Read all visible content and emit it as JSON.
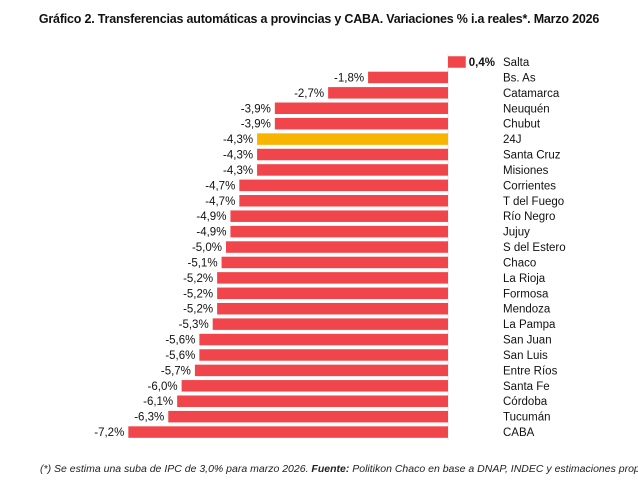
{
  "chart_data": {
    "type": "bar",
    "orientation": "horizontal",
    "title": "Gráfico 2. Transferencias automáticas a provincias y CABA. Variaciones % i.a reales*. Marzo 2026",
    "categories": [
      "Salta",
      "Bs. As",
      "Catamarca",
      "Neuquén",
      "Chubut",
      "24J",
      "Santa Cruz",
      "Misiones",
      "Corrientes",
      "T del Fuego",
      "Río Negro",
      "Jujuy",
      "S del Estero",
      "Chaco",
      "La Rioja",
      "Formosa",
      "Mendoza",
      "La Pampa",
      "San Juan",
      "San Luis",
      "Entre Ríos",
      "Santa Fe",
      "Córdoba",
      "Tucumán",
      "CABA"
    ],
    "values": [
      0.4,
      -1.8,
      -2.7,
      -3.9,
      -3.9,
      -4.3,
      -4.3,
      -4.3,
      -4.7,
      -4.7,
      -4.9,
      -4.9,
      -5.0,
      -5.1,
      -5.2,
      -5.2,
      -5.2,
      -5.3,
      -5.6,
      -5.6,
      -5.7,
      -6.0,
      -6.1,
      -6.3,
      -7.2
    ],
    "data_labels": [
      "0,4%",
      "-1,8%",
      "-2,7%",
      "-3,9%",
      "-3,9%",
      "-4,3%",
      "-4,3%",
      "-4,3%",
      "-4,7%",
      "-4,7%",
      "-4,9%",
      "-4,9%",
      "-5,0%",
      "-5,1%",
      "-5,2%",
      "-5,2%",
      "-5,2%",
      "-5,3%",
      "-5,6%",
      "-5,6%",
      "-5,7%",
      "-6,0%",
      "-6,1%",
      "-6,3%",
      "-7,2%"
    ],
    "highlight": "24J",
    "xlim": [
      -7.2,
      0.4
    ],
    "colors": {
      "default": "#f0464b",
      "highlight": "#f7b500"
    },
    "grid": false,
    "legend": "none"
  },
  "footnote": {
    "pre": "(*) Se estima una suba de IPC de 3,0% para marzo 2026. ",
    "source_label": "Fuente:",
    "source_text": " Politikon Chaco en base a DNAP, INDEC y estimaciones propias."
  }
}
